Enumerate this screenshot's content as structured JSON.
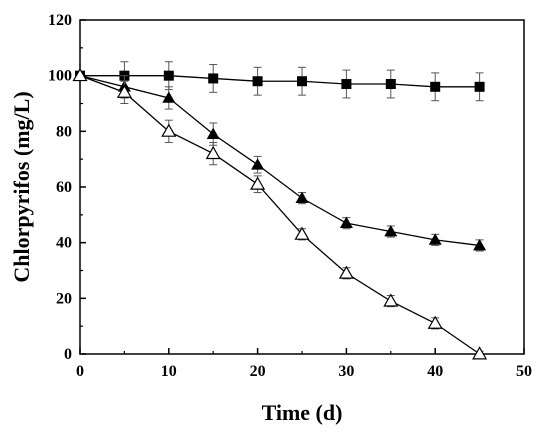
{
  "chart_data": {
    "type": "line",
    "xlabel": "Time (d)",
    "ylabel": "Chlorpyrifos (mg/L)",
    "xlim": [
      0,
      50
    ],
    "ylim": [
      0,
      120
    ],
    "x_ticks": [
      "0",
      "10",
      "20",
      "30",
      "40",
      "50"
    ],
    "y_ticks": [
      "0",
      "20",
      "40",
      "60",
      "80",
      "100",
      "120"
    ],
    "grid": false,
    "legend": "none",
    "series": [
      {
        "marker": "filled-square",
        "color": "#000000",
        "points": [
          {
            "x": 0,
            "y": 100,
            "err": 0
          },
          {
            "x": 5,
            "y": 100,
            "err": 5
          },
          {
            "x": 10,
            "y": 100,
            "err": 5
          },
          {
            "x": 15,
            "y": 99,
            "err": 5
          },
          {
            "x": 20,
            "y": 98,
            "err": 5
          },
          {
            "x": 25,
            "y": 98,
            "err": 5
          },
          {
            "x": 30,
            "y": 97,
            "err": 5
          },
          {
            "x": 35,
            "y": 97,
            "err": 5
          },
          {
            "x": 40,
            "y": 96,
            "err": 5
          },
          {
            "x": 45,
            "y": 96,
            "err": 5
          }
        ]
      },
      {
        "marker": "filled-triangle",
        "color": "#000000",
        "points": [
          {
            "x": 0,
            "y": 100,
            "err": 0
          },
          {
            "x": 5,
            "y": 96,
            "err": 4
          },
          {
            "x": 10,
            "y": 92,
            "err": 4
          },
          {
            "x": 15,
            "y": 79,
            "err": 4
          },
          {
            "x": 20,
            "y": 68,
            "err": 3
          },
          {
            "x": 25,
            "y": 56,
            "err": 2
          },
          {
            "x": 30,
            "y": 47,
            "err": 2
          },
          {
            "x": 35,
            "y": 44,
            "err": 2
          },
          {
            "x": 40,
            "y": 41,
            "err": 2
          },
          {
            "x": 45,
            "y": 39,
            "err": 2
          }
        ]
      },
      {
        "marker": "open-triangle",
        "color": "#000000",
        "points": [
          {
            "x": 0,
            "y": 100,
            "err": 0
          },
          {
            "x": 5,
            "y": 94,
            "err": 4
          },
          {
            "x": 10,
            "y": 80,
            "err": 4
          },
          {
            "x": 15,
            "y": 72,
            "err": 4
          },
          {
            "x": 20,
            "y": 61,
            "err": 3
          },
          {
            "x": 25,
            "y": 43,
            "err": 2
          },
          {
            "x": 30,
            "y": 29,
            "err": 2
          },
          {
            "x": 35,
            "y": 19,
            "err": 2
          },
          {
            "x": 40,
            "y": 11,
            "err": 2
          },
          {
            "x": 45,
            "y": 0,
            "err": 1
          }
        ]
      }
    ]
  }
}
